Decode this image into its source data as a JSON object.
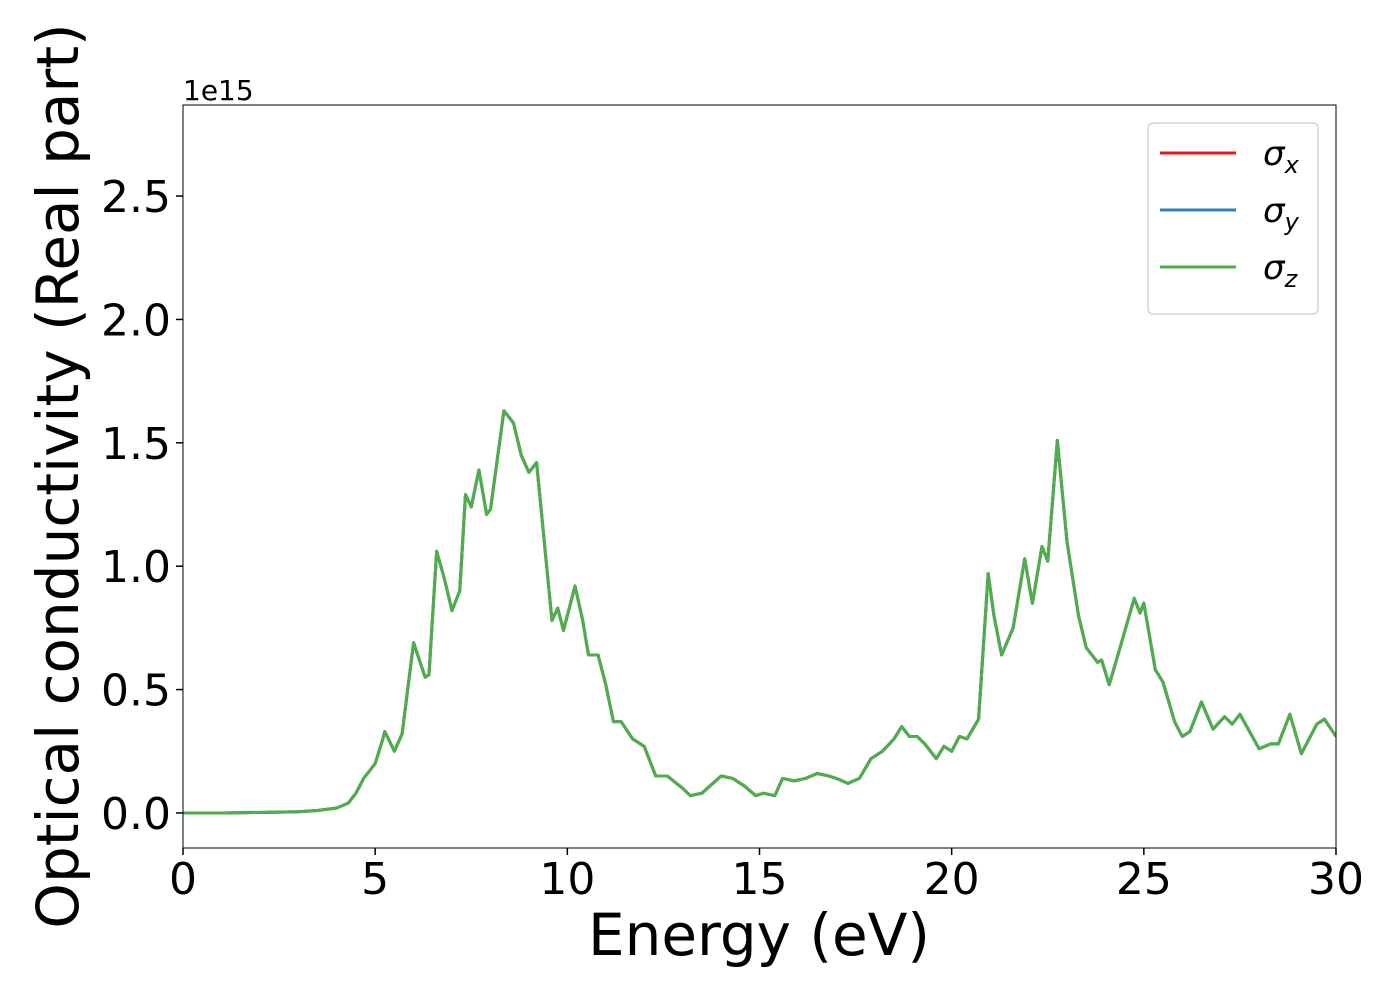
{
  "chart_data": {
    "type": "line",
    "x_label": "Energy (eV)",
    "y_label": "Optical conductivity (Real part)",
    "y_offset_label": "1e15",
    "x": [
      0,
      1,
      2,
      3,
      3.5,
      4.0,
      4.3,
      4.5,
      4.7,
      5.0,
      5.2,
      5.25,
      5.5,
      5.7,
      6.0,
      6.3,
      6.4,
      6.6,
      6.8,
      7.0,
      7.2,
      7.35,
      7.5,
      7.7,
      7.9,
      8.0,
      8.35,
      8.6,
      8.8,
      9.0,
      9.2,
      9.4,
      9.6,
      9.75,
      9.9,
      10.2,
      10.4,
      10.55,
      10.8,
      11.0,
      11.2,
      11.4,
      11.7,
      12.0,
      12.3,
      12.6,
      13.0,
      13.2,
      13.5,
      14.0,
      14.3,
      14.6,
      14.9,
      15.1,
      15.4,
      15.6,
      15.9,
      16.2,
      16.5,
      16.8,
      17.0,
      17.3,
      17.6,
      17.9,
      18.2,
      18.5,
      18.7,
      18.9,
      19.1,
      19.3,
      19.6,
      19.8,
      20.0,
      20.2,
      20.4,
      20.7,
      20.95,
      21.1,
      21.3,
      21.6,
      21.9,
      22.1,
      22.35,
      22.5,
      22.75,
      23.0,
      23.3,
      23.5,
      23.8,
      23.9,
      24.1,
      24.4,
      24.75,
      24.9,
      25.0,
      25.3,
      25.5,
      25.8,
      26.0,
      26.2,
      26.5,
      26.8,
      27.1,
      27.3,
      27.5,
      28.0,
      28.3,
      28.5,
      28.8,
      29.1,
      29.5,
      29.7,
      30.0
    ],
    "series": [
      {
        "name": "σx",
        "color": "#e41a1c",
        "values": [
          0,
          0,
          0.002,
          0.005,
          0.01,
          0.02,
          0.04,
          0.08,
          0.14,
          0.2,
          0.3,
          0.33,
          0.25,
          0.32,
          0.69,
          0.55,
          0.56,
          1.06,
          0.95,
          0.82,
          0.9,
          1.29,
          1.24,
          1.39,
          1.21,
          1.23,
          1.63,
          1.58,
          1.45,
          1.38,
          1.42,
          1.1,
          0.78,
          0.83,
          0.74,
          0.92,
          0.78,
          0.64,
          0.64,
          0.52,
          0.37,
          0.37,
          0.3,
          0.27,
          0.15,
          0.15,
          0.1,
          0.07,
          0.08,
          0.15,
          0.14,
          0.11,
          0.07,
          0.08,
          0.07,
          0.14,
          0.13,
          0.14,
          0.16,
          0.15,
          0.14,
          0.12,
          0.14,
          0.22,
          0.25,
          0.3,
          0.35,
          0.31,
          0.31,
          0.28,
          0.22,
          0.27,
          0.25,
          0.31,
          0.3,
          0.38,
          0.97,
          0.8,
          0.64,
          0.75,
          1.03,
          0.85,
          1.08,
          1.02,
          1.51,
          1.1,
          0.8,
          0.67,
          0.61,
          0.62,
          0.52,
          0.68,
          0.87,
          0.81,
          0.85,
          0.58,
          0.53,
          0.37,
          0.31,
          0.33,
          0.45,
          0.34,
          0.39,
          0.36,
          0.4,
          0.26,
          0.28,
          0.28,
          0.4,
          0.24,
          0.36,
          0.38,
          0.31
        ]
      },
      {
        "name": "σy",
        "color": "#377eb8",
        "values": [
          0,
          0,
          0.002,
          0.005,
          0.01,
          0.02,
          0.04,
          0.08,
          0.14,
          0.2,
          0.3,
          0.33,
          0.25,
          0.32,
          0.69,
          0.55,
          0.56,
          1.06,
          0.95,
          0.82,
          0.9,
          1.29,
          1.24,
          1.39,
          1.21,
          1.23,
          1.63,
          1.58,
          1.45,
          1.38,
          1.42,
          1.1,
          0.78,
          0.83,
          0.74,
          0.92,
          0.78,
          0.64,
          0.64,
          0.52,
          0.37,
          0.37,
          0.3,
          0.27,
          0.15,
          0.15,
          0.1,
          0.07,
          0.08,
          0.15,
          0.14,
          0.11,
          0.07,
          0.08,
          0.07,
          0.14,
          0.13,
          0.14,
          0.16,
          0.15,
          0.14,
          0.12,
          0.14,
          0.22,
          0.25,
          0.3,
          0.35,
          0.31,
          0.31,
          0.28,
          0.22,
          0.27,
          0.25,
          0.31,
          0.3,
          0.38,
          0.97,
          0.8,
          0.64,
          0.75,
          1.03,
          0.85,
          1.08,
          1.02,
          1.51,
          1.1,
          0.8,
          0.67,
          0.61,
          0.62,
          0.52,
          0.68,
          0.87,
          0.81,
          0.85,
          0.58,
          0.53,
          0.37,
          0.31,
          0.33,
          0.45,
          0.34,
          0.39,
          0.36,
          0.4,
          0.26,
          0.28,
          0.28,
          0.4,
          0.24,
          0.36,
          0.38,
          0.31
        ]
      },
      {
        "name": "σz",
        "color": "#4daf4a",
        "values": [
          0,
          0,
          0.002,
          0.005,
          0.01,
          0.02,
          0.04,
          0.08,
          0.14,
          0.2,
          0.3,
          0.33,
          0.25,
          0.32,
          0.69,
          0.55,
          0.56,
          1.06,
          0.95,
          0.82,
          0.9,
          1.29,
          1.24,
          1.39,
          1.21,
          1.23,
          1.63,
          1.58,
          1.45,
          1.38,
          1.42,
          1.1,
          0.78,
          0.83,
          0.74,
          0.92,
          0.78,
          0.64,
          0.64,
          0.52,
          0.37,
          0.37,
          0.3,
          0.27,
          0.15,
          0.15,
          0.1,
          0.07,
          0.08,
          0.15,
          0.14,
          0.11,
          0.07,
          0.08,
          0.07,
          0.14,
          0.13,
          0.14,
          0.16,
          0.15,
          0.14,
          0.12,
          0.14,
          0.22,
          0.25,
          0.3,
          0.35,
          0.31,
          0.31,
          0.28,
          0.22,
          0.27,
          0.25,
          0.31,
          0.3,
          0.38,
          0.97,
          0.8,
          0.64,
          0.75,
          1.03,
          0.85,
          1.08,
          1.02,
          1.51,
          1.1,
          0.8,
          0.67,
          0.61,
          0.62,
          0.52,
          0.68,
          0.87,
          0.81,
          0.85,
          0.58,
          0.53,
          0.37,
          0.31,
          0.33,
          0.45,
          0.34,
          0.39,
          0.36,
          0.4,
          0.26,
          0.28,
          0.28,
          0.4,
          0.24,
          0.36,
          0.38,
          0.31
        ]
      }
    ],
    "xlim": [
      0,
      30
    ],
    "xticks": [
      0,
      5,
      10,
      15,
      20,
      25,
      30
    ],
    "ylim": [
      -0.142,
      2.869
    ],
    "yticks": [
      {
        "value": 0,
        "label": "0.0"
      },
      0.5,
      {
        "value": 1,
        "label": "1.0"
      },
      1.5,
      {
        "value": 2,
        "label": "2.0"
      },
      2.5
    ],
    "grid": false,
    "legend": "upper-right"
  }
}
